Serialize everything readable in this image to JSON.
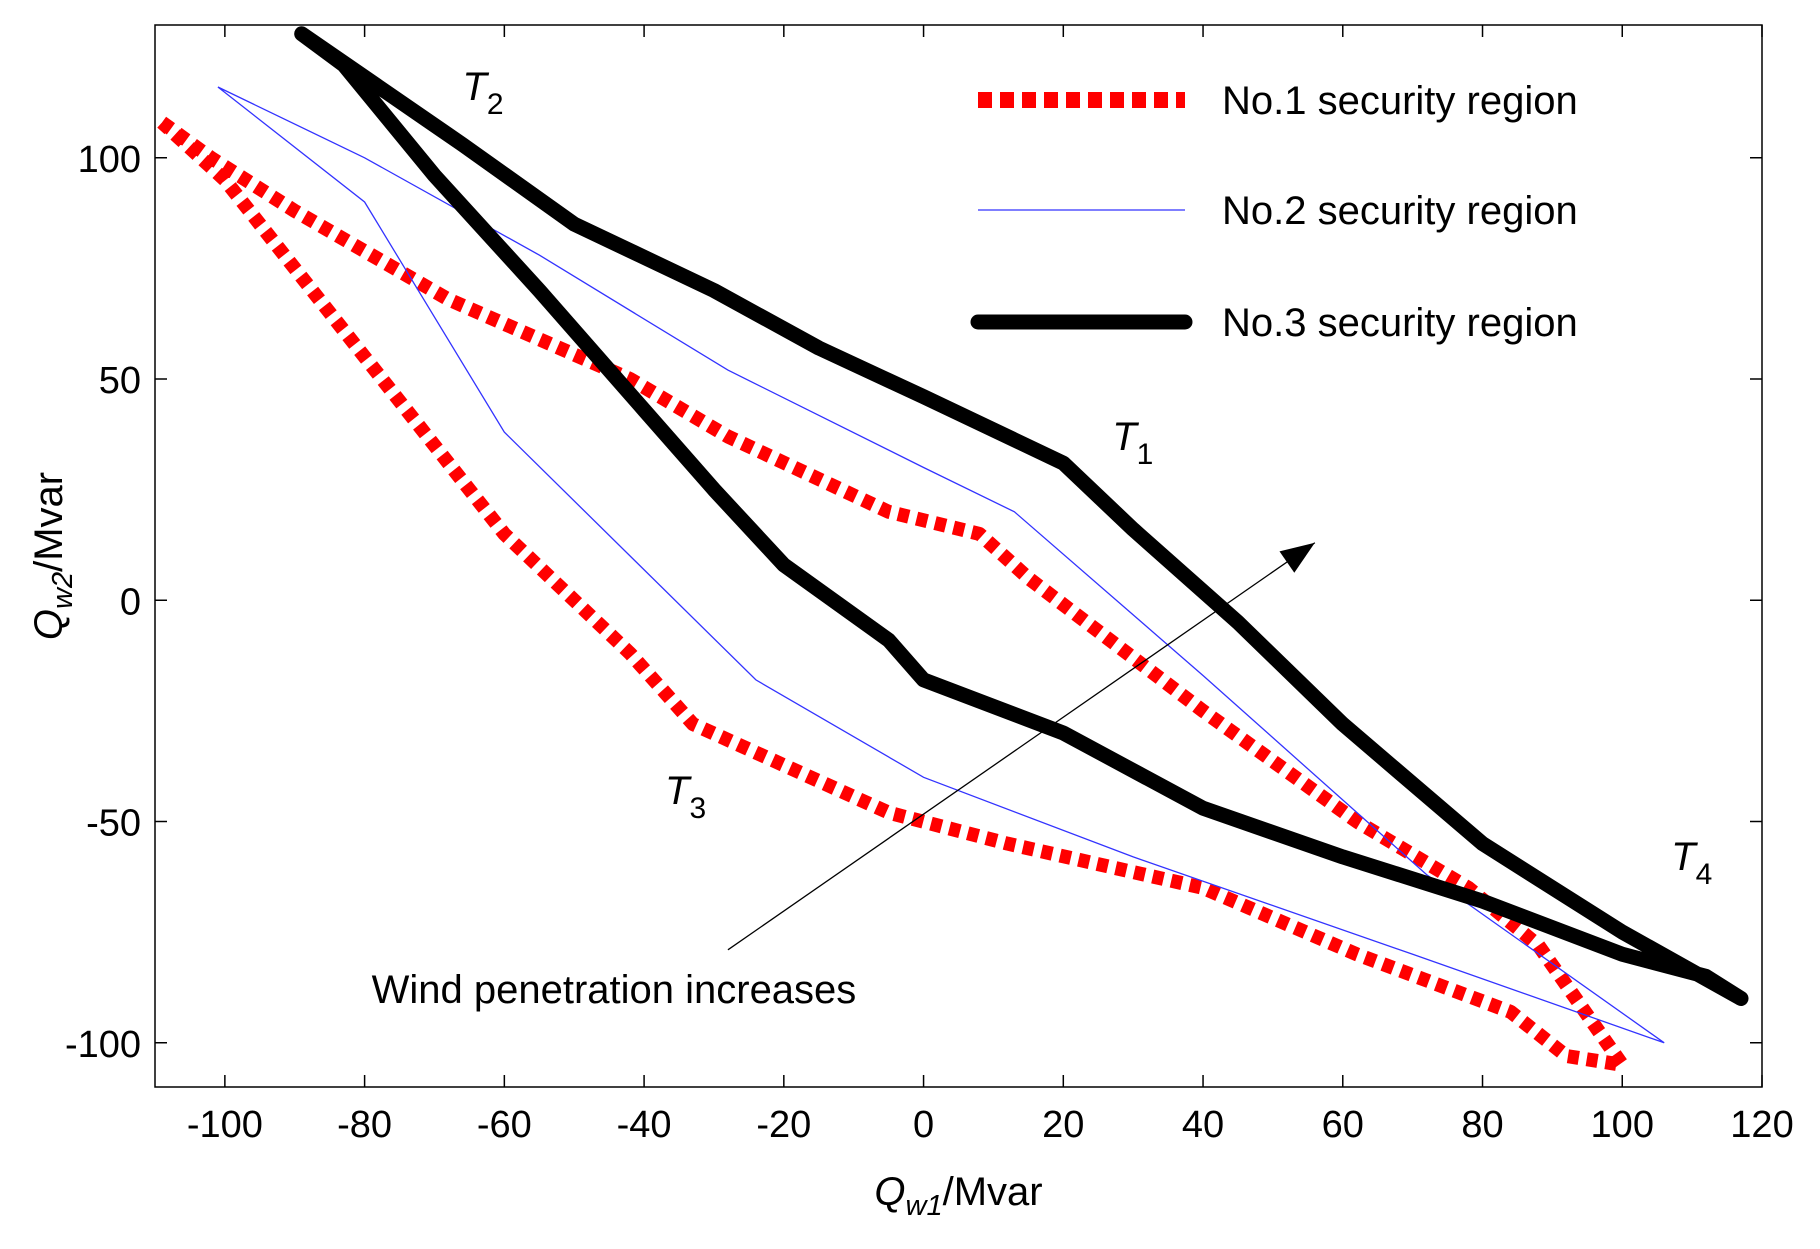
{
  "chart_data": {
    "type": "line",
    "title": "",
    "xlabel": {
      "main": "Q",
      "sub": "w1",
      "unit": "/Mvar"
    },
    "ylabel": {
      "main": "Q",
      "sub": "w2",
      "unit": "/Mvar"
    },
    "xlim": [
      -110,
      120
    ],
    "ylim": [
      -110,
      130
    ],
    "xticks": [
      -100,
      -80,
      -60,
      -40,
      -20,
      0,
      20,
      40,
      60,
      80,
      100,
      120
    ],
    "yticks": [
      -100,
      -50,
      0,
      50,
      100
    ],
    "xtick_labels": [
      "-100",
      "-80",
      "-60",
      "-40",
      "-20",
      "0",
      "20",
      "40",
      "60",
      "80",
      "100",
      "120"
    ],
    "ytick_labels": [
      "-100",
      "-50",
      "0",
      "50",
      "100"
    ],
    "legend_position": "top-right",
    "series": [
      {
        "name": "No.1 security region",
        "style": "dotted-thick",
        "color": "#ff0000",
        "x": [
          -109,
          -102,
          -90,
          -68,
          -42,
          -28,
          -5,
          8,
          15,
          40,
          62,
          78,
          88,
          92,
          100,
          92,
          84,
          62,
          40,
          12,
          -5,
          -33,
          -42,
          -60,
          -80,
          -100,
          -109
        ],
        "y": [
          108,
          100,
          88,
          68,
          50,
          37,
          20,
          15,
          5,
          -25,
          -50,
          -65,
          -78,
          -87,
          -105,
          -103,
          -93,
          -80,
          -65,
          -55,
          -48,
          -28,
          -12,
          15,
          55,
          95,
          108
        ]
      },
      {
        "name": "No.2 security region",
        "style": "thin",
        "color": "#3333ff",
        "x": [
          -101,
          -80,
          -55,
          -28,
          0,
          13,
          40,
          72,
          106,
          70,
          30,
          0,
          -24,
          -60,
          -80,
          -101
        ],
        "y": [
          116,
          100,
          78,
          52,
          30,
          20,
          -17,
          -62,
          -100,
          -80,
          -58,
          -40,
          -18,
          38,
          90,
          116
        ]
      },
      {
        "name": "No.3 security region",
        "style": "thick-solid",
        "color": "#000000",
        "x": [
          -89,
          -66,
          -50,
          -30,
          -15,
          0,
          20,
          30,
          45,
          60,
          80,
          100,
          117,
          112,
          100,
          80,
          60,
          40,
          20,
          0,
          -5,
          -20,
          -30,
          -40,
          -55,
          -70,
          -83,
          -89
        ],
        "y": [
          128,
          103,
          85,
          70,
          57,
          46,
          31,
          16,
          -5,
          -28,
          -55,
          -75,
          -90,
          -85,
          -80,
          -68,
          -58,
          -47,
          -30,
          -18,
          -9,
          8,
          25,
          43,
          70,
          96,
          121,
          128
        ]
      }
    ],
    "annotations": [
      {
        "text": "T",
        "sub": "1",
        "x": 27,
        "y": 34
      },
      {
        "text": "T",
        "sub": "2",
        "x": -66,
        "y": 113
      },
      {
        "text": "T",
        "sub": "3",
        "x": -37,
        "y": -46
      },
      {
        "text": "T",
        "sub": "4",
        "x": 107,
        "y": -61
      },
      {
        "text": "Wind penetration increases",
        "x": -79,
        "y": -91
      }
    ],
    "arrow": {
      "from": [
        -28,
        -79
      ],
      "to": [
        56,
        13
      ]
    }
  }
}
